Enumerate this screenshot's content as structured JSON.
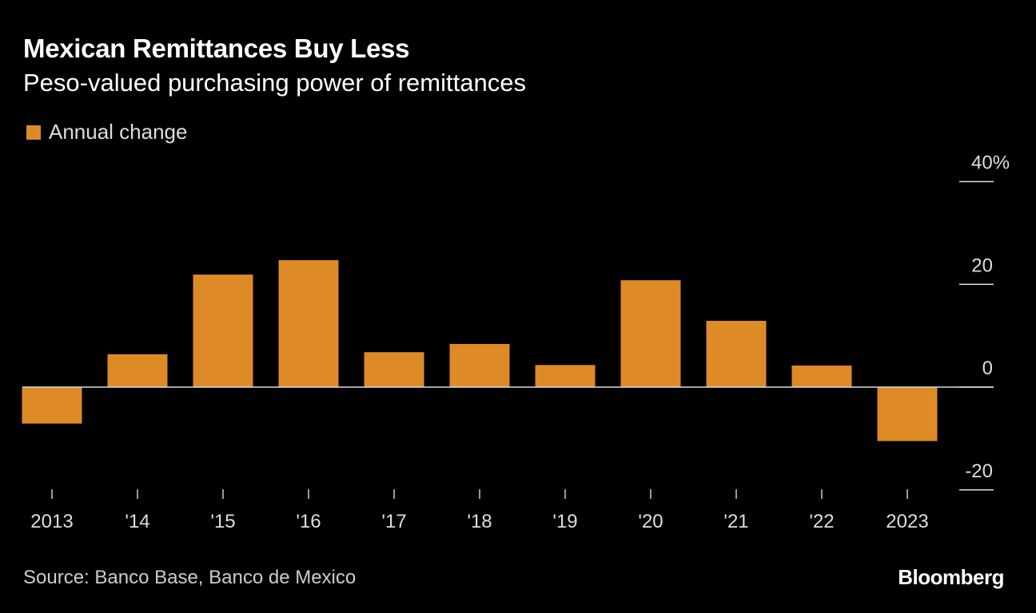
{
  "title": "Mexican Remittances Buy Less",
  "subtitle": "Peso-valued purchasing power of remittances",
  "source": "Source: Banco Base, Banco de Mexico",
  "logo": "Bloomberg",
  "chart_data": {
    "type": "bar",
    "title": "Mexican Remittances Buy Less",
    "subtitle": "Peso-valued purchasing power of remittances",
    "categories": [
      "2013",
      "'14",
      "'15",
      "'16",
      "'17",
      "'18",
      "'19",
      "'20",
      "'21",
      "'22",
      "2023"
    ],
    "series": [
      {
        "name": "Annual change",
        "color": "#dd8a27",
        "values": [
          -7.1,
          6.4,
          21.9,
          24.7,
          6.8,
          8.4,
          4.3,
          20.8,
          12.9,
          4.2,
          -10.5
        ]
      }
    ],
    "yticks": [
      40,
      20,
      0,
      -20
    ],
    "ytick_labels": [
      "40%",
      "20",
      "0",
      "-20"
    ],
    "ylim": [
      -20,
      40
    ],
    "y_axis_side": "right",
    "grid": false,
    "legend": "top-left",
    "xlabel": "",
    "ylabel": ""
  }
}
